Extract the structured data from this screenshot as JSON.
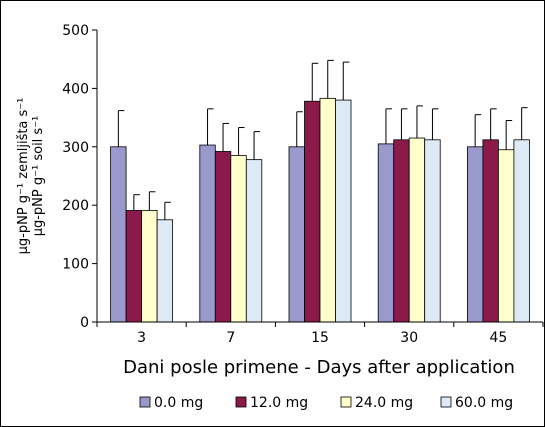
{
  "chart_data": {
    "type": "bar",
    "categories": [
      "3",
      "7",
      "15",
      "30",
      "45"
    ],
    "xlabel": "Dani posle primene - Days after application",
    "ylabel_lines": [
      "µg-pNP g⁻¹ zemljišta s⁻¹",
      "µg-pNP g⁻¹ soil s⁻¹"
    ],
    "ylim": [
      0,
      500
    ],
    "yticks": [
      0,
      100,
      200,
      300,
      400,
      500
    ],
    "legend_position": "bottom",
    "grid": false,
    "series": [
      {
        "name": "0.0 mg",
        "color": "#9999cc",
        "values": [
          300,
          303,
          300,
          305,
          300
        ],
        "errors": [
          62,
          62,
          60,
          60,
          55
        ]
      },
      {
        "name": "12.0 mg",
        "color": "#8b1a4a",
        "values": [
          191,
          292,
          378,
          312,
          312
        ],
        "errors": [
          27,
          48,
          65,
          53,
          53
        ]
      },
      {
        "name": "24.0 mg",
        "color": "#ffffcc",
        "values": [
          191,
          285,
          383,
          315,
          295
        ],
        "errors": [
          32,
          48,
          65,
          55,
          50
        ]
      },
      {
        "name": "60.0 mg",
        "color": "#dde9f5",
        "values": [
          175,
          278,
          380,
          312,
          312
        ],
        "errors": [
          30,
          48,
          65,
          53,
          55
        ]
      }
    ]
  }
}
